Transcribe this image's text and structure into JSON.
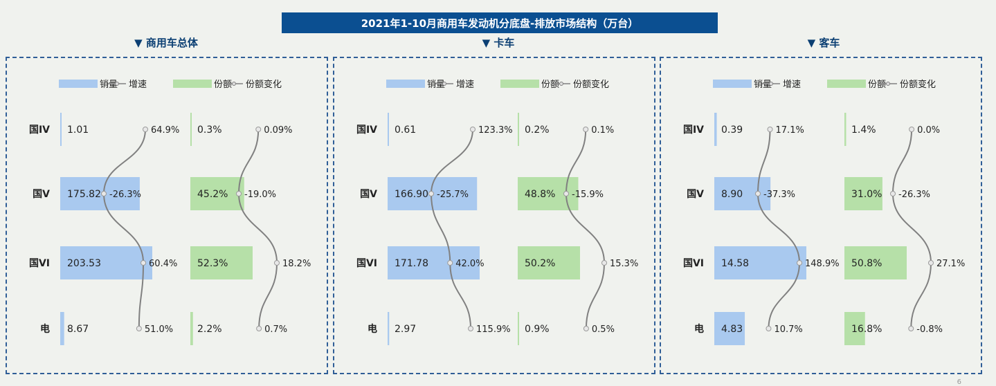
{
  "title": "2021年1-10月商用车发动机分底盘-排放市场结构（万台）",
  "legend": {
    "sales": "销量",
    "growth": "增速",
    "share": "份额",
    "share_change": "份额变化"
  },
  "colors": {
    "sales_bar": "#a9c9ef",
    "share_bar": "#b6e0a8",
    "curve": "#808080",
    "title_bg": "#0b4f91"
  },
  "page_number": "6",
  "chart_data": [
    {
      "type": "bar",
      "panel_title": "▼ 商用车总体",
      "categories": [
        "国IV",
        "国V",
        "国VI",
        "电"
      ],
      "series": [
        {
          "name": "销量",
          "values": [
            1.01,
            175.82,
            203.53,
            8.67
          ],
          "labels": [
            "1.01",
            "175.82",
            "203.53",
            "8.67"
          ]
        },
        {
          "name": "增速",
          "values": [
            64.9,
            -26.3,
            60.4,
            51.0
          ],
          "labels": [
            "64.9%",
            "-26.3%",
            "60.4%",
            "51.0%"
          ]
        },
        {
          "name": "份额",
          "values": [
            0.3,
            45.2,
            52.3,
            2.2
          ],
          "labels": [
            "0.3%",
            "45.2%",
            "52.3%",
            "2.2%"
          ]
        },
        {
          "name": "份额变化",
          "values": [
            0.09,
            -19.0,
            18.2,
            0.7
          ],
          "labels": [
            "0.09%",
            "-19.0%",
            "18.2%",
            "0.7%"
          ]
        }
      ]
    },
    {
      "type": "bar",
      "panel_title": "▼ 卡车",
      "categories": [
        "国IV",
        "国V",
        "国VI",
        "电"
      ],
      "series": [
        {
          "name": "销量",
          "values": [
            0.61,
            166.9,
            171.78,
            2.97
          ],
          "labels": [
            "0.61",
            "166.90",
            "171.78",
            "2.97"
          ]
        },
        {
          "name": "增速",
          "values": [
            123.3,
            -25.7,
            42.0,
            115.9
          ],
          "labels": [
            "123.3%",
            "-25.7%",
            "42.0%",
            "115.9%"
          ]
        },
        {
          "name": "份额",
          "values": [
            0.2,
            48.8,
            50.2,
            0.9
          ],
          "labels": [
            "0.2%",
            "48.8%",
            "50.2%",
            "0.9%"
          ]
        },
        {
          "name": "份额变化",
          "values": [
            0.1,
            -15.9,
            15.3,
            0.5
          ],
          "labels": [
            "0.1%",
            "-15.9%",
            "15.3%",
            "0.5%"
          ]
        }
      ]
    },
    {
      "type": "bar",
      "panel_title": "▼ 客车",
      "categories": [
        "国IV",
        "国V",
        "国VI",
        "电"
      ],
      "series": [
        {
          "name": "销量",
          "values": [
            0.39,
            8.9,
            14.58,
            4.83
          ],
          "labels": [
            "0.39",
            "8.90",
            "14.58",
            "4.83"
          ]
        },
        {
          "name": "增速",
          "values": [
            17.1,
            -37.3,
            148.9,
            10.7
          ],
          "labels": [
            "17.1%",
            "-37.3%",
            "148.9%",
            "10.7%"
          ]
        },
        {
          "name": "份额",
          "values": [
            1.4,
            31.0,
            50.8,
            16.8
          ],
          "labels": [
            "1.4%",
            "31.0%",
            "50.8%",
            "16.8%"
          ]
        },
        {
          "name": "份额变化",
          "values": [
            0.0,
            -26.3,
            27.1,
            -0.8
          ],
          "labels": [
            "0.0%",
            "-26.3%",
            "27.1%",
            "-0.8%"
          ]
        }
      ]
    }
  ]
}
